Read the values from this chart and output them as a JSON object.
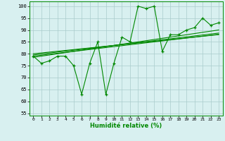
{
  "title": "",
  "xlabel": "Humidité relative (%)",
  "ylabel": "",
  "bg_color": "#d8f0f0",
  "line_color": "#008800",
  "grid_color": "#aacccc",
  "ylim": [
    54,
    102
  ],
  "xlim": [
    -0.5,
    23.5
  ],
  "yticks": [
    55,
    60,
    65,
    70,
    75,
    80,
    85,
    90,
    95,
    100
  ],
  "xticks": [
    0,
    1,
    2,
    3,
    4,
    5,
    6,
    7,
    8,
    9,
    10,
    11,
    12,
    13,
    14,
    15,
    16,
    17,
    18,
    19,
    20,
    21,
    22,
    23
  ],
  "main_line": [
    79,
    76,
    77,
    79,
    79,
    75,
    63,
    76,
    85,
    63,
    76,
    87,
    85,
    100,
    99,
    100,
    81,
    88,
    88,
    90,
    91,
    95,
    92,
    93
  ],
  "trend_lines": [
    [
      78.5,
      79.0,
      79.5,
      80.0,
      80.5,
      81.0,
      81.5,
      82.0,
      82.5,
      83.0,
      83.5,
      84.0,
      84.5,
      85.0,
      85.5,
      86.0,
      86.5,
      87.0,
      87.5,
      88.0,
      88.5,
      89.0,
      89.5,
      90.0
    ],
    [
      79.0,
      79.4,
      79.8,
      80.2,
      80.6,
      81.0,
      81.4,
      81.8,
      82.2,
      82.6,
      83.0,
      83.4,
      83.8,
      84.2,
      84.6,
      85.0,
      85.4,
      85.8,
      86.2,
      86.6,
      87.0,
      87.4,
      87.8,
      88.2
    ],
    [
      79.5,
      79.9,
      80.3,
      80.7,
      81.1,
      81.5,
      81.9,
      82.3,
      82.7,
      83.1,
      83.5,
      83.9,
      84.3,
      84.7,
      85.1,
      85.5,
      85.9,
      86.3,
      86.7,
      87.1,
      87.5,
      87.9,
      88.3,
      88.7
    ],
    [
      80.0,
      80.35,
      80.7,
      81.05,
      81.4,
      81.75,
      82.1,
      82.45,
      82.8,
      83.15,
      83.5,
      83.85,
      84.2,
      84.55,
      84.9,
      85.25,
      85.6,
      85.95,
      86.3,
      86.65,
      87.0,
      87.35,
      87.7,
      88.05
    ]
  ]
}
